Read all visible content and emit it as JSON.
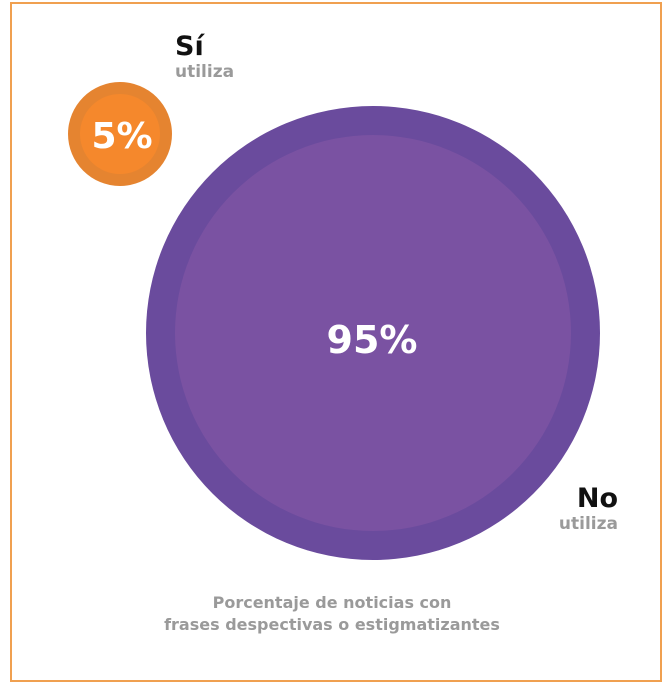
{
  "chart_data": {
    "type": "bubble",
    "title": "",
    "caption_lines": [
      "Porcentaje de noticias con",
      "frases despectivas o estigmatizantes"
    ],
    "unit": "%",
    "series": [
      {
        "label_main": "Sí",
        "label_sub": "utiliza",
        "value": 5,
        "value_label": "5%",
        "color_outer": "#e58430",
        "color_inner": "#f5882c"
      },
      {
        "label_main": "No",
        "label_sub": "utiliza",
        "value": 95,
        "value_label": "95%",
        "color_outer": "#6a4b9d",
        "color_inner": "#7a52a2"
      }
    ]
  },
  "colors": {
    "frame_border": "#f0a050",
    "label_main": "#111111",
    "label_sub": "#9a9a9a",
    "value_text": "#ffffff"
  }
}
